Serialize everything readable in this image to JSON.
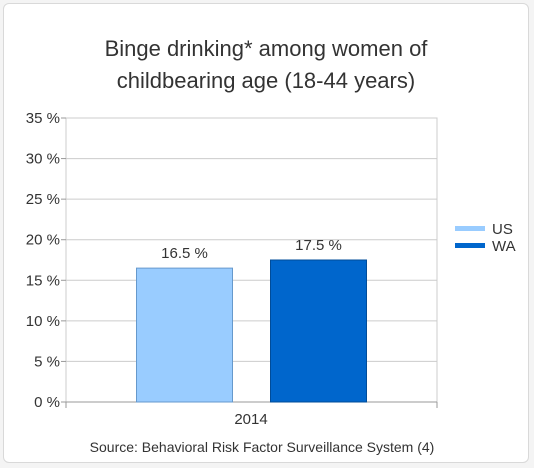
{
  "chart_data": {
    "type": "bar",
    "title_lines": [
      "Binge drinking* among women of",
      "childbearing age (18-44 years)"
    ],
    "categories": [
      "2014"
    ],
    "series": [
      {
        "name": "US",
        "values": [
          16.5
        ],
        "label": "16.5 %",
        "color": "#99ccff",
        "stroke": "#6699cc"
      },
      {
        "name": "WA",
        "values": [
          17.5
        ],
        "label": "17.5 %",
        "color": "#0066cc",
        "stroke": "#004c99"
      }
    ],
    "ylim": [
      0,
      35
    ],
    "yticks": [
      {
        "value": 0,
        "label": "0 %"
      },
      {
        "value": 5,
        "label": "5 %"
      },
      {
        "value": 10,
        "label": "10 %"
      },
      {
        "value": 15,
        "label": "15 %"
      },
      {
        "value": 20,
        "label": "20 %"
      },
      {
        "value": 25,
        "label": "25 %"
      },
      {
        "value": 30,
        "label": "30 %"
      },
      {
        "value": 35,
        "label": "35 %"
      }
    ],
    "grid": true,
    "legend_position": "right",
    "source": "Source: Behavioral Risk Factor Surveillance System (4)"
  }
}
